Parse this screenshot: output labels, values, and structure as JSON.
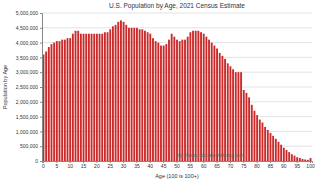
{
  "chart_data": {
    "type": "bar",
    "title": "U.S. Population by Age, 2021 Census Estimate",
    "xlabel": "Age (100 is 100+)",
    "ylabel": "Population by Age",
    "annotations": [
      "http://www.calculatedriskblog.com"
    ],
    "categories": [
      "0",
      null,
      null,
      null,
      null,
      "5",
      null,
      null,
      null,
      null,
      "10",
      null,
      null,
      null,
      null,
      "15",
      null,
      null,
      null,
      null,
      "20",
      null,
      null,
      null,
      null,
      "25",
      null,
      null,
      null,
      null,
      "30",
      null,
      null,
      null,
      null,
      "35",
      null,
      null,
      null,
      null,
      "40",
      null,
      null,
      null,
      null,
      "45",
      null,
      null,
      null,
      null,
      "50",
      null,
      null,
      null,
      null,
      "55",
      null,
      null,
      null,
      null,
      "60",
      null,
      null,
      null,
      null,
      "65",
      null,
      null,
      null,
      null,
      "70",
      null,
      null,
      null,
      null,
      "75",
      null,
      null,
      null,
      null,
      "80",
      null,
      null,
      null,
      null,
      "85",
      null,
      null,
      null,
      null,
      "90",
      null,
      null,
      null,
      null,
      "95",
      null,
      null,
      null,
      null,
      "100"
    ],
    "values": [
      3600000,
      3700000,
      3850000,
      3950000,
      4000000,
      4050000,
      4050000,
      4100000,
      4100000,
      4150000,
      4150000,
      4300000,
      4400000,
      4400000,
      4300000,
      4300000,
      4300000,
      4300000,
      4300000,
      4300000,
      4300000,
      4300000,
      4300000,
      4350000,
      4350000,
      4450000,
      4550000,
      4600000,
      4700000,
      4750000,
      4700000,
      4600000,
      4500000,
      4500000,
      4500000,
      4500000,
      4450000,
      4450000,
      4400000,
      4350000,
      4300000,
      4150000,
      4050000,
      4000000,
      3900000,
      3900000,
      3950000,
      4100000,
      4300000,
      4200000,
      4100000,
      4050000,
      4100000,
      4100000,
      4200000,
      4350000,
      4400000,
      4400000,
      4400000,
      4350000,
      4300000,
      4200000,
      4100000,
      4000000,
      3900000,
      3800000,
      3650000,
      3550000,
      3450000,
      3300000,
      3200000,
      3100000,
      3000000,
      3000000,
      3000000,
      2400000,
      2300000,
      2150000,
      1900000,
      1700000,
      1550000,
      1400000,
      1300000,
      1150000,
      1050000,
      950000,
      850000,
      750000,
      650000,
      550000,
      450000,
      370000,
      300000,
      230000,
      180000,
      130000,
      100000,
      70000,
      50000,
      40000,
      100000
    ],
    "color": "#cc2a2a",
    "ylim": [
      0,
      5000000
    ],
    "yticks": [
      0,
      {
        "value": 500000,
        "label": "500,000"
      },
      {
        "value": 1000000,
        "label": "1,000,000"
      },
      {
        "value": 1500000,
        "label": "1,500,000"
      },
      {
        "value": 2000000,
        "label": "2,000,000"
      },
      {
        "value": 2500000,
        "label": "2,500,000"
      },
      {
        "value": 3000000,
        "label": "3,000,000"
      },
      {
        "value": 3500000,
        "label": "3,500,000"
      },
      {
        "value": 4000000,
        "label": "4,000,000"
      },
      {
        "value": 4500000,
        "label": "4,500,000"
      },
      {
        "value": 5000000,
        "label": "5,000,000"
      }
    ],
    "grid": true
  }
}
